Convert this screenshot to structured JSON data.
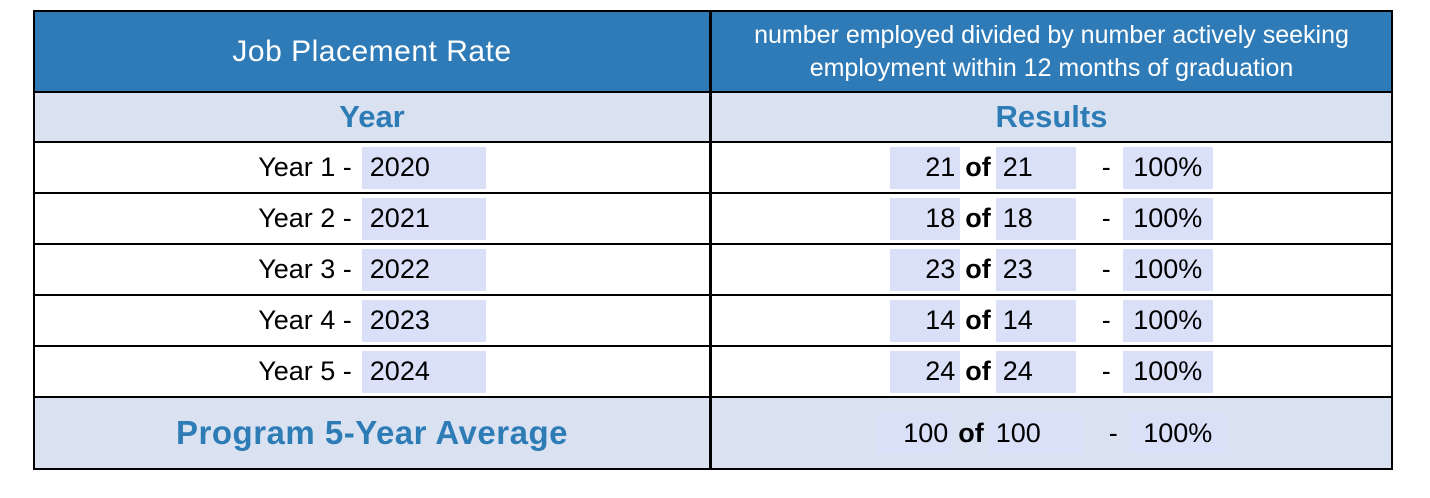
{
  "header": {
    "title": "Job Placement Rate",
    "definition": "number employed divided by number actively seeking employment within 12 months of graduation"
  },
  "subheader": {
    "year": "Year",
    "results": "Results"
  },
  "connector": "of",
  "separator": "-",
  "rows": [
    {
      "label": "Year 1 -",
      "year": "2020",
      "employed": "21",
      "seeking": "21",
      "rate": "100%"
    },
    {
      "label": "Year 2 -",
      "year": "2021",
      "employed": "18",
      "seeking": "18",
      "rate": "100%"
    },
    {
      "label": "Year 3 -",
      "year": "2022",
      "employed": "23",
      "seeking": "23",
      "rate": "100%"
    },
    {
      "label": "Year 4 -",
      "year": "2023",
      "employed": "14",
      "seeking": "14",
      "rate": "100%"
    },
    {
      "label": "Year 5 -",
      "year": "2024",
      "employed": "24",
      "seeking": "24",
      "rate": "100%"
    }
  ],
  "footer": {
    "label": "Program 5-Year Average",
    "employed": "100",
    "seeking": "100",
    "rate": "100%"
  },
  "colors": {
    "header_bg": "#2e7bb7",
    "header_text": "#ffffff",
    "accent_text": "#2e7cb5",
    "band_bg": "#dae2f2",
    "field_bg": "#d9e0f8",
    "border": "#000000"
  }
}
